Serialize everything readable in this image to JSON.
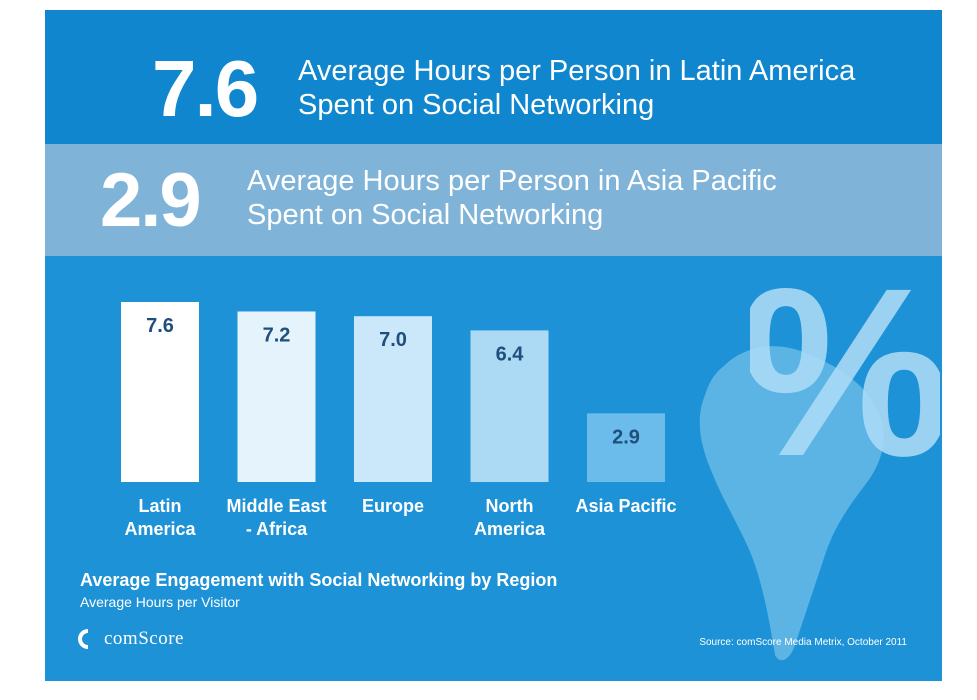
{
  "header": {
    "latin_value": "7.6",
    "latin_line1": "Average Hours per Person in Latin America",
    "latin_line2": "Spent on Social Networking",
    "asia_value": "2.9",
    "asia_line1": "Average Hours per Person in Asia Pacific",
    "asia_line2": "Spent on Social Networking"
  },
  "decoration": {
    "percent_symbol": "%"
  },
  "chart_data": {
    "type": "bar",
    "title": "Average Engagement with Social Networking by Region",
    "subtitle": "Average Hours per Visitor",
    "ylabel": "Average Hours per Visitor",
    "ylim": [
      0,
      7.6
    ],
    "categories": [
      [
        "Latin",
        "America"
      ],
      [
        "Middle East",
        "- Africa"
      ],
      [
        "Europe"
      ],
      [
        "North",
        "America"
      ],
      [
        "Asia Pacific"
      ]
    ],
    "values": [
      7.6,
      7.2,
      7.0,
      6.4,
      2.9
    ],
    "value_labels": [
      "7.6",
      "7.2",
      "7.0",
      "6.4",
      "2.9"
    ],
    "bar_colors": [
      "#ffffff",
      "#e5f3fc",
      "#cae8f9",
      "#acd9f4",
      "#6bbcea"
    ]
  },
  "branding": {
    "logo_text": "comScore"
  },
  "source": "Source: comScore Media Metrix, October 2011",
  "colors": {
    "background": "#1d92d6",
    "top_band": "#0f86cd",
    "second_band": "#7fb3d8",
    "value_text": "#1f4f7c"
  }
}
